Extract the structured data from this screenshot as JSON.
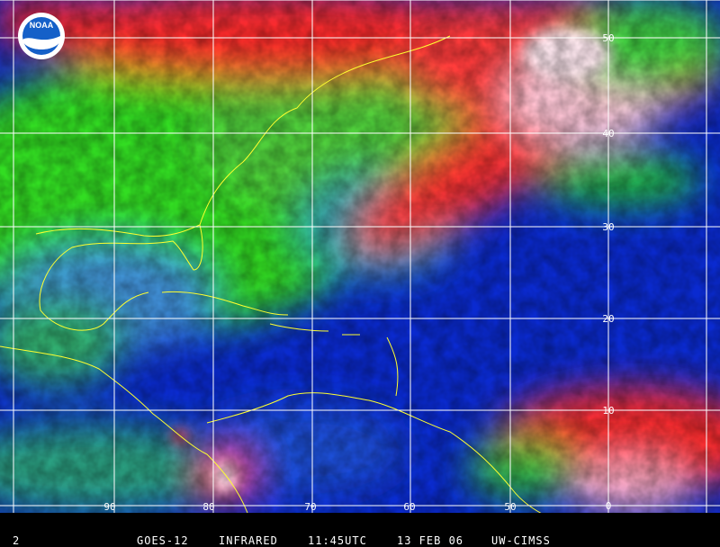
{
  "logo": "NOAA",
  "latitude_labels": [
    "50",
    "40",
    "30",
    "20",
    "10",
    "0"
  ],
  "longitude_labels": [
    "90",
    "80",
    "70",
    "60",
    "50"
  ],
  "footer": {
    "frame": "2",
    "satellite": "GOES-12",
    "channel": "INFRARED",
    "time": "11:45UTC",
    "date": "13 FEB 06",
    "source": "UW-CIMSS"
  }
}
